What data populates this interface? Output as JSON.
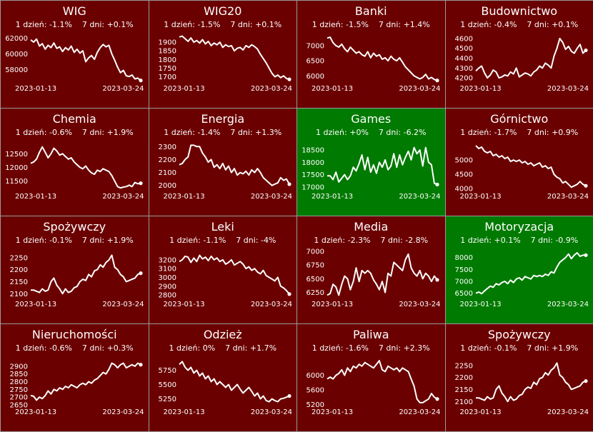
{
  "colors": {
    "down": "#6b0000",
    "up": "#007a00",
    "line": "#ffffff",
    "border": "#9a9a9a"
  },
  "chart_data": [
    {
      "type": "line",
      "title": "WIG",
      "stats": "1 dzień: -1.1%    7 dni: +0.1%",
      "trend": "down",
      "yticks": [
        62000,
        60000,
        58000
      ],
      "ylim": [
        56300,
        62600
      ],
      "x_start": "2023-01-13",
      "x_end": "2023-03-24",
      "values": [
        61800,
        61500,
        61900,
        61000,
        61300,
        60600,
        61100,
        60800,
        61400,
        60700,
        60900,
        60300,
        60800,
        60500,
        61000,
        60200,
        60600,
        60100,
        60400,
        59000,
        59500,
        59800,
        59300,
        60200,
        60800,
        61200,
        60900,
        61100,
        60000,
        59200,
        58300,
        57600,
        57900,
        57200,
        57100,
        57300,
        56800,
        56900,
        56600
      ]
    },
    {
      "type": "line",
      "title": "WIG20",
      "stats": "1 dzień: -1.5%    7 dni: +0.1%",
      "trend": "down",
      "yticks": [
        1900,
        1850,
        1800,
        1750,
        1700
      ],
      "ylim": [
        1665,
        1950
      ],
      "x_start": "2023-01-13",
      "x_end": "2023-03-24",
      "values": [
        1930,
        1935,
        1920,
        1905,
        1925,
        1900,
        1910,
        1895,
        1915,
        1890,
        1905,
        1880,
        1895,
        1885,
        1900,
        1870,
        1885,
        1875,
        1880,
        1850,
        1865,
        1870,
        1855,
        1880,
        1870,
        1885,
        1875,
        1860,
        1830,
        1805,
        1780,
        1750,
        1720,
        1700,
        1710,
        1695,
        1705,
        1690,
        1685
      ]
    },
    {
      "type": "line",
      "title": "Banki",
      "stats": "1 dzień: -1.5%    7 dni: +1.4%",
      "trend": "down",
      "yticks": [
        7000,
        6500,
        6000
      ],
      "ylim": [
        5770,
        7400
      ],
      "x_start": "2023-01-13",
      "x_end": "2023-03-24",
      "values": [
        7250,
        7280,
        7100,
        7000,
        6950,
        7050,
        6900,
        6800,
        6950,
        6850,
        6750,
        6800,
        6700,
        6650,
        6800,
        6600,
        6750,
        6650,
        6700,
        6550,
        6600,
        6500,
        6650,
        6550,
        6500,
        6600,
        6450,
        6300,
        6200,
        6100,
        6000,
        5950,
        5900,
        5950,
        6050,
        5900,
        5950,
        5880,
        5850
      ]
    },
    {
      "type": "line",
      "title": "Budownictwo",
      "stats": "1 dzień: -0.4%    7 dni: +0.1%",
      "trend": "down",
      "yticks": [
        4600,
        4500,
        4400,
        4300,
        4200
      ],
      "ylim": [
        4150,
        4650
      ],
      "x_start": "2023-01-13",
      "x_end": "2023-03-24",
      "values": [
        4270,
        4300,
        4320,
        4250,
        4200,
        4230,
        4280,
        4260,
        4200,
        4210,
        4230,
        4220,
        4260,
        4240,
        4300,
        4210,
        4230,
        4250,
        4240,
        4220,
        4260,
        4280,
        4320,
        4300,
        4350,
        4330,
        4300,
        4420,
        4500,
        4600,
        4560,
        4490,
        4520,
        4470,
        4450,
        4500,
        4540,
        4450,
        4480
      ]
    },
    {
      "type": "line",
      "title": "Chemia",
      "stats": "1 dzień: -0.6%    7 dni: +1.9%",
      "trend": "down",
      "yticks": [
        12500,
        12000,
        11500
      ],
      "ylim": [
        11150,
        12950
      ],
      "x_start": "2023-01-13",
      "x_end": "2023-03-24",
      "values": [
        12150,
        12200,
        12300,
        12550,
        12750,
        12550,
        12350,
        12500,
        12700,
        12600,
        12450,
        12500,
        12400,
        12300,
        12350,
        12200,
        12100,
        12000,
        11950,
        12050,
        11900,
        11800,
        11750,
        11900,
        11850,
        11950,
        11900,
        11850,
        11700,
        11500,
        11300,
        11250,
        11280,
        11300,
        11350,
        11300,
        11450,
        11400,
        11420
      ]
    },
    {
      "type": "line",
      "title": "Energia",
      "stats": "1 dzień: -1.4%    7 dni: +1.3%",
      "trend": "down",
      "yticks": [
        2300,
        2200,
        2100,
        2000
      ],
      "ylim": [
        1960,
        2340
      ],
      "x_start": "2023-01-13",
      "x_end": "2023-03-24",
      "values": [
        2160,
        2170,
        2200,
        2220,
        2310,
        2310,
        2300,
        2300,
        2250,
        2220,
        2180,
        2200,
        2140,
        2160,
        2130,
        2170,
        2120,
        2150,
        2100,
        2130,
        2080,
        2100,
        2090,
        2110,
        2080,
        2120,
        2100,
        2130,
        2100,
        2060,
        2040,
        2020,
        2000,
        2010,
        2020,
        2060,
        2040,
        2050,
        2010
      ]
    },
    {
      "type": "line",
      "title": "Games",
      "stats": "1 dzień: +0%    7 dni: -6.2%",
      "trend": "up",
      "yticks": [
        18500,
        18000,
        17500,
        17000
      ],
      "ylim": [
        16850,
        18850
      ],
      "x_start": "2023-01-13",
      "x_end": "2023-03-24",
      "values": [
        17450,
        17450,
        17300,
        17600,
        17200,
        17350,
        17500,
        17300,
        17450,
        17800,
        17650,
        17950,
        18300,
        17700,
        18200,
        17600,
        17900,
        17550,
        18000,
        17800,
        18100,
        17700,
        17850,
        18350,
        17800,
        18300,
        17900,
        18200,
        18450,
        18100,
        18600,
        18350,
        18500,
        17850,
        18600,
        18000,
        17900,
        17150,
        17100
      ]
    },
    {
      "type": "line",
      "title": "Górnictwo",
      "stats": "1 dzień: -1.7%    7 dni: +0.9%",
      "trend": "down",
      "yticks": [
        5000,
        4500,
        4000
      ],
      "ylim": [
        3930,
        5650
      ],
      "x_start": "2023-01-13",
      "x_end": "2023-03-24",
      "values": [
        5500,
        5400,
        5450,
        5300,
        5250,
        5300,
        5150,
        5200,
        5100,
        5150,
        5050,
        5100,
        4950,
        5000,
        4950,
        5000,
        4900,
        4950,
        4850,
        4900,
        4800,
        4850,
        4900,
        4750,
        4800,
        4700,
        4750,
        4500,
        4400,
        4350,
        4200,
        4250,
        4150,
        4050,
        4100,
        4150,
        4250,
        4150,
        4100
      ]
    },
    {
      "type": "line",
      "title": "Spożywczy",
      "stats": "1 dzień: -0.1%    7 dni: +1.9%",
      "trend": "down",
      "yticks": [
        2250,
        2200,
        2150,
        2100
      ],
      "ylim": [
        2080,
        2285
      ],
      "x_start": "2023-01-13",
      "x_end": "2023-03-24",
      "values": [
        2115,
        2115,
        2110,
        2105,
        2120,
        2110,
        2115,
        2150,
        2165,
        2135,
        2120,
        2100,
        2120,
        2105,
        2110,
        2125,
        2130,
        2150,
        2160,
        2155,
        2180,
        2170,
        2195,
        2200,
        2220,
        2210,
        2230,
        2240,
        2260,
        2210,
        2200,
        2180,
        2170,
        2150,
        2155,
        2160,
        2165,
        2180,
        2185
      ]
    },
    {
      "type": "line",
      "title": "Leki",
      "stats": "1 dzień: -1.1%    7 dni: -4%",
      "trend": "down",
      "yticks": [
        3200,
        3100,
        3000,
        2900,
        2800
      ],
      "ylim": [
        2760,
        3320
      ],
      "x_start": "2023-01-13",
      "x_end": "2023-03-24",
      "values": [
        3180,
        3200,
        3240,
        3230,
        3170,
        3220,
        3180,
        3250,
        3210,
        3230,
        3190,
        3240,
        3200,
        3220,
        3180,
        3200,
        3150,
        3170,
        3200,
        3140,
        3160,
        3180,
        3150,
        3100,
        3120,
        3080,
        3100,
        3060,
        3040,
        3080,
        3020,
        3000,
        2980,
        2960,
        3000,
        2900,
        2880,
        2850,
        2810
      ]
    },
    {
      "type": "line",
      "title": "Media",
      "stats": "1 dzień: -2.3%    7 dni: -2.8%",
      "trend": "down",
      "yticks": [
        7000,
        6750,
        6500,
        6250
      ],
      "ylim": [
        6140,
        7040
      ],
      "x_start": "2023-01-13",
      "x_end": "2023-03-24",
      "values": [
        6200,
        6230,
        6400,
        6350,
        6200,
        6400,
        6550,
        6500,
        6300,
        6450,
        6700,
        6450,
        6650,
        6600,
        6650,
        6600,
        6480,
        6400,
        6300,
        6450,
        6250,
        6600,
        6550,
        6800,
        6750,
        6700,
        6650,
        6850,
        6950,
        6700,
        6600,
        6550,
        6650,
        6500,
        6600,
        6550,
        6450,
        6550,
        6480
      ]
    },
    {
      "type": "line",
      "title": "Motoryzacja",
      "stats": "1 dzień: +0.1%    7 dni: -0.9%",
      "trend": "up",
      "yticks": [
        8000,
        7500,
        7000,
        6500
      ],
      "ylim": [
        6280,
        8350
      ],
      "x_start": "2023-01-13",
      "x_end": "2023-03-24",
      "values": [
        6500,
        6550,
        6480,
        6600,
        6700,
        6800,
        6750,
        6900,
        6850,
        6950,
        7000,
        6900,
        7050,
        6950,
        7100,
        7150,
        7050,
        7200,
        7150,
        7100,
        7250,
        7200,
        7250,
        7200,
        7300,
        7250,
        7400,
        7350,
        7600,
        7800,
        7900,
        8000,
        8150,
        7950,
        8100,
        8200,
        8050,
        8100,
        8100
      ]
    },
    {
      "type": "line",
      "title": "Nieruchomości",
      "stats": "1 dzień: -0.6%    7 dni: +0.3%",
      "trend": "down",
      "yticks": [
        2900,
        2850,
        2800,
        2750,
        2700,
        2650
      ],
      "ylim": [
        2640,
        2960
      ],
      "x_start": "2023-01-13",
      "x_end": "2023-03-24",
      "values": [
        2710,
        2705,
        2680,
        2700,
        2690,
        2710,
        2740,
        2720,
        2750,
        2740,
        2760,
        2750,
        2770,
        2760,
        2780,
        2770,
        2760,
        2780,
        2790,
        2780,
        2800,
        2790,
        2810,
        2820,
        2840,
        2860,
        2850,
        2880,
        2920,
        2910,
        2890,
        2910,
        2920,
        2890,
        2900,
        2910,
        2900,
        2920,
        2910
      ]
    },
    {
      "type": "line",
      "title": "Odzież",
      "stats": "1 dzień: 0%    7 dni: +1.7%",
      "trend": "down",
      "yticks": [
        5750,
        5500,
        5250
      ],
      "ylim": [
        5120,
        5980
      ],
      "x_start": "2023-01-13",
      "x_end": "2023-03-24",
      "values": [
        5850,
        5900,
        5800,
        5750,
        5800,
        5700,
        5750,
        5650,
        5700,
        5600,
        5650,
        5550,
        5600,
        5500,
        5550,
        5500,
        5450,
        5500,
        5400,
        5450,
        5500,
        5420,
        5350,
        5400,
        5450,
        5380,
        5300,
        5350,
        5250,
        5300,
        5220,
        5200,
        5250,
        5220,
        5200,
        5250,
        5260,
        5280,
        5300
      ]
    },
    {
      "type": "line",
      "title": "Paliwa",
      "stats": "1 dzień: -1.6%    7 dni: +2.3%",
      "trend": "down",
      "yticks": [
        6000,
        5600,
        5200
      ],
      "ylim": [
        5150,
        6500
      ],
      "x_start": "2023-01-13",
      "x_end": "2023-03-24",
      "values": [
        5900,
        5950,
        5900,
        6000,
        6050,
        6150,
        6000,
        6200,
        6100,
        6250,
        6200,
        6300,
        6250,
        6350,
        6300,
        6250,
        6200,
        6300,
        6400,
        6150,
        6100,
        6250,
        6200,
        6150,
        6200,
        6100,
        6200,
        6150,
        6100,
        5900,
        5700,
        5350,
        5250,
        5250,
        5300,
        5350,
        5500,
        5400,
        5350
      ]
    },
    {
      "type": "line",
      "title": "Spożywczy",
      "stats": "1 dzień: -0.1%    7 dni: +1.9%",
      "trend": "down",
      "yticks": [
        2250,
        2200,
        2150,
        2100
      ],
      "ylim": [
        2080,
        2285
      ],
      "x_start": "2023-01-13",
      "x_end": "2023-03-24",
      "values": [
        2115,
        2115,
        2110,
        2105,
        2120,
        2110,
        2115,
        2150,
        2165,
        2135,
        2120,
        2100,
        2120,
        2105,
        2110,
        2125,
        2130,
        2150,
        2160,
        2155,
        2180,
        2170,
        2195,
        2200,
        2220,
        2210,
        2230,
        2240,
        2260,
        2210,
        2200,
        2180,
        2170,
        2150,
        2155,
        2160,
        2165,
        2180,
        2185
      ]
    }
  ]
}
